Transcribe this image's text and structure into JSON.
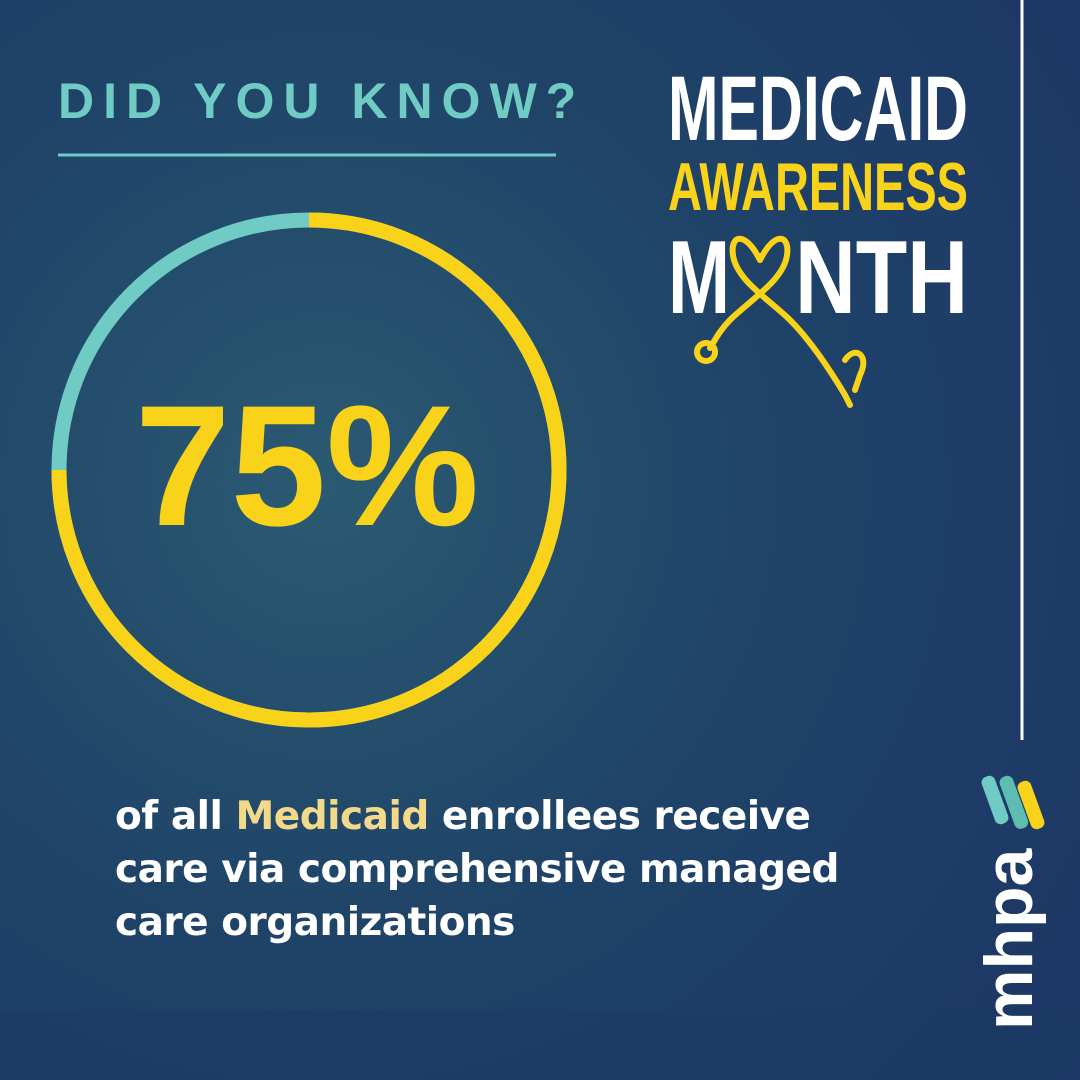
{
  "kicker": "DID YOU KNOW?",
  "campaign": {
    "line1": "MEDICAID",
    "line2": "AWARENESS",
    "line3_start": "M",
    "line3_end": "NTH"
  },
  "stat": {
    "value": 75,
    "label": "75%"
  },
  "description": {
    "lead": "of all",
    "highlight": "Medicaid",
    "rest": "enrollees receive care via comprehensive managed care organizations"
  },
  "logo": "mhpa"
}
